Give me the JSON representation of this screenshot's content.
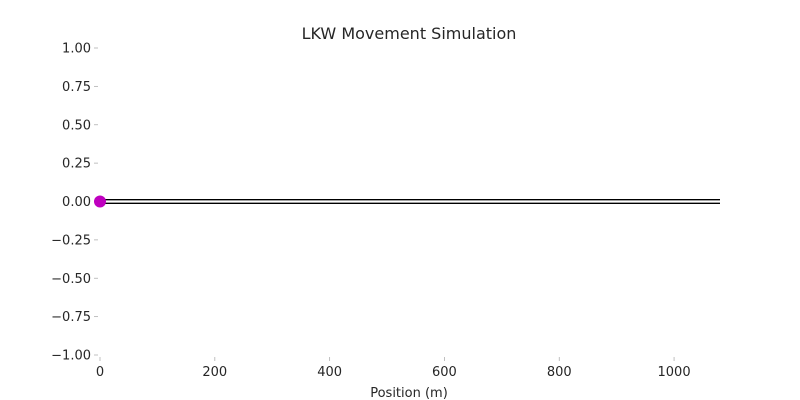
{
  "chart_data": {
    "type": "line",
    "title": "LKW Movement Simulation",
    "xlabel": "Position (m)",
    "ylabel": "",
    "xlim": [
      0,
      1080
    ],
    "ylim": [
      -1.0,
      1.0
    ],
    "x_ticks": [
      0,
      200,
      400,
      600,
      800,
      1000
    ],
    "x_tick_labels": [
      "0",
      "200",
      "400",
      "600",
      "800",
      "1000"
    ],
    "y_ticks": [
      1.0,
      0.75,
      0.5,
      0.25,
      0.0,
      -0.25,
      -0.5,
      -0.75,
      -1.0
    ],
    "y_tick_labels": [
      "1.00",
      "0.75",
      "0.50",
      "0.25",
      "0.00",
      "−0.25",
      "−0.50",
      "−0.75",
      "−1.00"
    ],
    "grid": false,
    "series": [
      {
        "x": [
          0,
          1080
        ],
        "y": [
          0.0,
          0.0
        ],
        "color": "#000000"
      }
    ],
    "marker": {
      "x": 0,
      "y": 0.0,
      "color": "#bf00bf"
    }
  }
}
